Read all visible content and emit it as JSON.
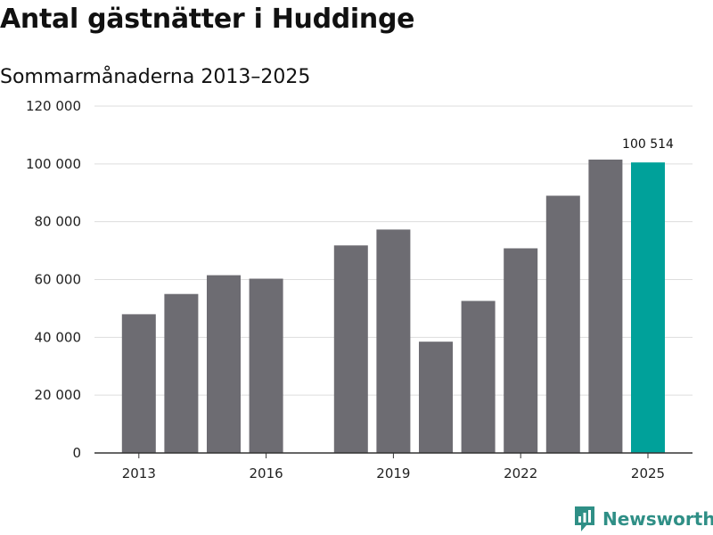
{
  "title": "Antal gästnätter i Huddinge",
  "subtitle": "Sommarmånaderna 2013–2025",
  "brand": "Newsworthy",
  "colors": {
    "bar": "#6d6c72",
    "highlight": "#00a19a",
    "grid": "#dddddd",
    "axis": "#333333",
    "brand": "#2f8f86"
  },
  "chart_data": {
    "type": "bar",
    "title": "Antal gästnätter i Huddinge",
    "subtitle": "Sommarmånaderna 2013–2025",
    "xlabel": "",
    "ylabel": "",
    "categories": [
      "2013",
      "2014",
      "2015",
      "2016",
      "2017",
      "2018",
      "2019",
      "2020",
      "2021",
      "2022",
      "2023",
      "2024",
      "2025"
    ],
    "values": [
      48000,
      55000,
      61500,
      60300,
      null,
      71800,
      77300,
      38500,
      52600,
      70800,
      89000,
      101500,
      100514
    ],
    "x_tick_labels": [
      "2013",
      "",
      "",
      "2016",
      "",
      "",
      "2019",
      "",
      "",
      "2022",
      "",
      "",
      "2025"
    ],
    "ylim": [
      0,
      120000
    ],
    "y_ticks": [
      0,
      20000,
      40000,
      60000,
      80000,
      100000,
      120000
    ],
    "y_tick_labels": [
      "0",
      "20 000",
      "40 000",
      "60 000",
      "80 000",
      "100 000",
      "120 000"
    ],
    "highlight_index": 12,
    "data_labels": [
      {
        "index": 12,
        "text": "100 514"
      }
    ],
    "grid": true,
    "legend": "none"
  }
}
